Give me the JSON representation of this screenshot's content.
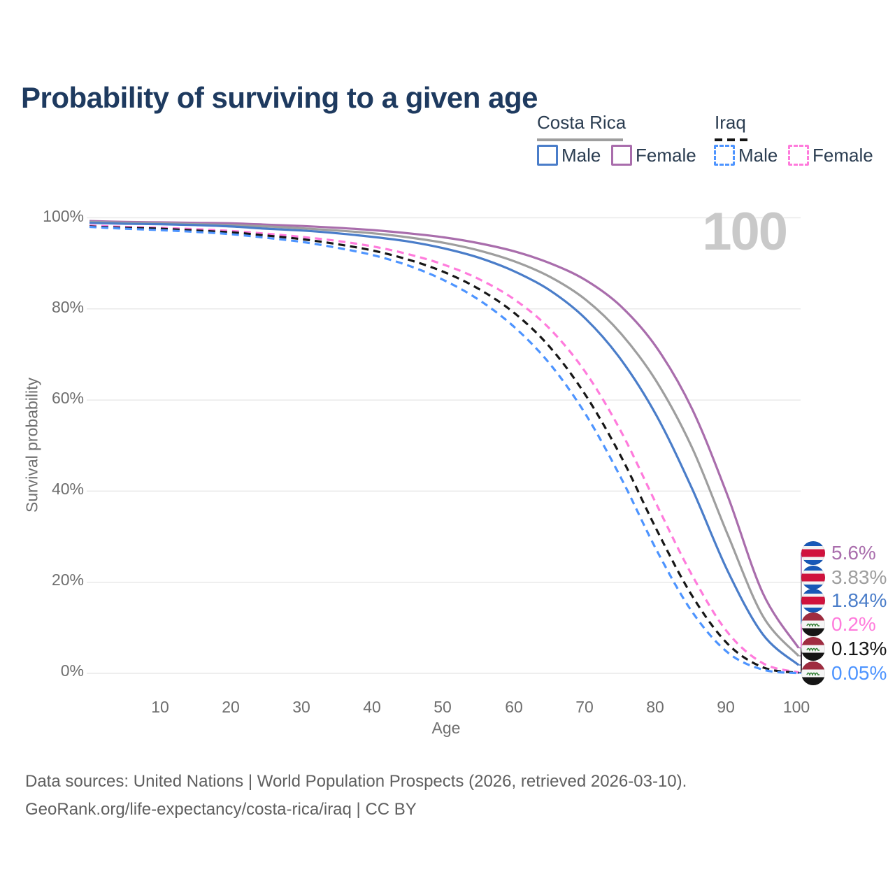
{
  "title": "Probability of surviving to a given age",
  "age_hover_indicator": "100",
  "legend": {
    "groups": [
      {
        "label": "Costa Rica",
        "style": "solid",
        "items": [
          {
            "label": "Male"
          },
          {
            "label": "Female"
          }
        ]
      },
      {
        "label": "Iraq",
        "style": "dashed",
        "items": [
          {
            "label": "Male"
          },
          {
            "label": "Female"
          }
        ]
      }
    ]
  },
  "chart_data": {
    "type": "line",
    "title": "Probability of surviving to a given age",
    "xlabel": "Age",
    "ylabel": "Survival probability",
    "xlim": [
      0,
      100
    ],
    "ylim": [
      0,
      100
    ],
    "grid": "horizontal-only",
    "legend_position": "top-right",
    "x_tick_labels": [
      "10",
      "20",
      "30",
      "40",
      "50",
      "60",
      "70",
      "80",
      "90",
      "100"
    ],
    "y_tick_labels": [
      "100%",
      "80%",
      "60%",
      "40%",
      "20%",
      "0%"
    ],
    "y_gridlines_pct": [
      0,
      20,
      40,
      60,
      80,
      100
    ],
    "x": [
      0,
      5,
      10,
      15,
      20,
      25,
      30,
      35,
      40,
      45,
      50,
      55,
      60,
      65,
      70,
      75,
      80,
      85,
      90,
      95,
      100
    ],
    "series": [
      {
        "name": "Costa Rica Female",
        "color": "#a96dac",
        "dashed": false,
        "end_label": "5.6%",
        "flag": "costa-rica",
        "values": [
          99.3,
          99.1,
          99.0,
          98.9,
          98.8,
          98.5,
          98.2,
          97.8,
          97.3,
          96.6,
          95.7,
          94.4,
          92.6,
          90.0,
          86.3,
          80.5,
          71.5,
          58.0,
          39.0,
          17.5,
          5.6
        ]
      },
      {
        "name": "Costa Rica",
        "color": "#9e9e9e",
        "dashed": false,
        "end_label": "3.83%",
        "flag": "costa-rica",
        "values": [
          99.1,
          98.9,
          98.8,
          98.6,
          98.4,
          98.1,
          97.7,
          97.2,
          96.6,
          95.7,
          94.5,
          92.8,
          90.4,
          87.0,
          82.0,
          74.5,
          64.0,
          49.5,
          30.5,
          12.5,
          3.83
        ]
      },
      {
        "name": "Costa Rica Male",
        "color": "#4a7dc9",
        "dashed": false,
        "end_label": "1.84%",
        "flag": "costa-rica",
        "values": [
          98.9,
          98.7,
          98.6,
          98.4,
          98.1,
          97.6,
          97.2,
          96.6,
          95.8,
          94.8,
          93.3,
          91.2,
          88.2,
          84.0,
          77.8,
          68.8,
          56.5,
          40.5,
          22.5,
          8.5,
          1.84
        ]
      },
      {
        "name": "Iraq Female",
        "color": "#ff7bdc",
        "dashed": true,
        "end_label": "0.2%",
        "flag": "iraq",
        "values": [
          98.3,
          98.0,
          97.8,
          97.5,
          97.1,
          96.5,
          95.8,
          94.9,
          93.7,
          92.0,
          89.7,
          86.5,
          82.0,
          75.5,
          66.0,
          53.0,
          37.0,
          21.5,
          9.0,
          2.2,
          0.2
        ]
      },
      {
        "name": "Iraq",
        "color": "#161616",
        "dashed": true,
        "end_label": "0.13%",
        "flag": "iraq",
        "values": [
          98.1,
          97.8,
          97.6,
          97.2,
          96.8,
          96.1,
          95.3,
          94.2,
          92.8,
          90.8,
          88.1,
          84.3,
          79.0,
          71.5,
          61.0,
          47.5,
          31.5,
          17.0,
          6.5,
          1.3,
          0.13
        ]
      },
      {
        "name": "Iraq Male",
        "color": "#4d94ff",
        "dashed": true,
        "end_label": "0.05%",
        "flag": "iraq",
        "values": [
          98.0,
          97.6,
          97.3,
          96.9,
          96.4,
          95.6,
          94.7,
          93.4,
          91.8,
          89.5,
          86.3,
          81.9,
          75.9,
          67.8,
          56.8,
          42.8,
          27.0,
          13.5,
          4.6,
          0.8,
          0.05
        ]
      }
    ]
  },
  "colors": {
    "title_text": "#1e3a5f",
    "axis_text": "#6f6f6f",
    "gridline": "#e9e9e9",
    "watermark": "#c9c9c9",
    "footer_text": "#5f5f5f"
  },
  "icons": {
    "costa_rica_flag": "costa-rica-flag-icon",
    "iraq_flag": "iraq-flag-icon"
  },
  "footer": {
    "line1": "Data sources: United Nations | World Population Prospects (2026, retrieved 2026-03-10).",
    "line2": "GeoRank.org/life-expectancy/costa-rica/iraq | CC BY"
  }
}
